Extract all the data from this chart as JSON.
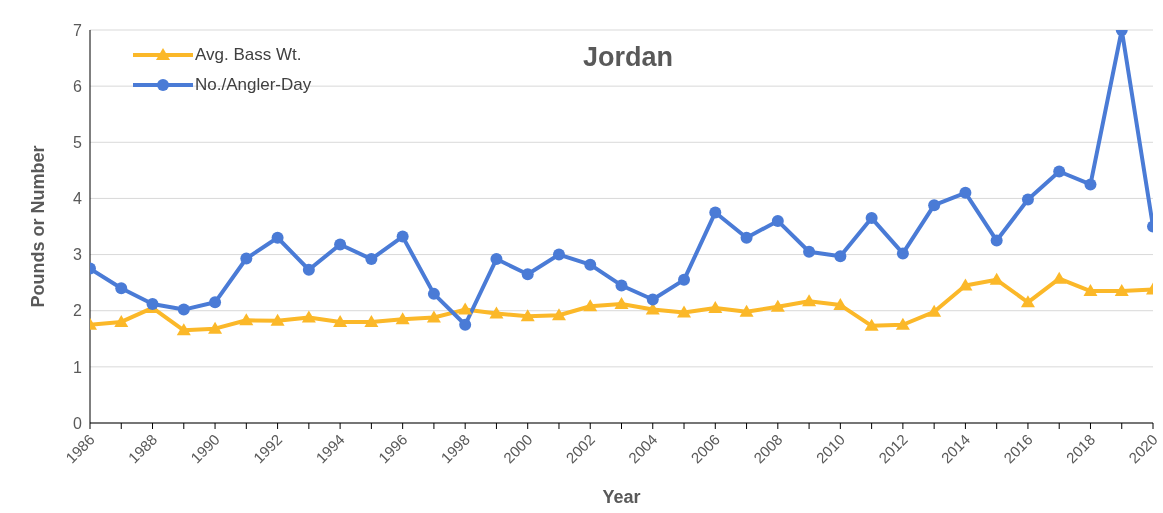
{
  "chart_data": {
    "type": "line",
    "title": "Jordan",
    "xlabel": "Year",
    "ylabel": "Pounds or Number",
    "categories": [
      "1986",
      null,
      "1988",
      null,
      "1990",
      null,
      "1992",
      null,
      "1994",
      null,
      "1996",
      null,
      "1998",
      null,
      "2000",
      null,
      "2002",
      null,
      "2004",
      null,
      "2006",
      null,
      "2008",
      null,
      "2010",
      null,
      "2012",
      null,
      "2014",
      null,
      "2016",
      null,
      "2018",
      null,
      "2020"
    ],
    "series": [
      {
        "name": "Avg. Bass Wt.",
        "color": "#fbb829",
        "marker": "triangle",
        "values": [
          1.75,
          1.8,
          2.05,
          1.65,
          1.68,
          1.83,
          1.82,
          1.88,
          1.8,
          1.8,
          1.85,
          1.88,
          2.02,
          1.95,
          1.9,
          1.92,
          2.08,
          2.12,
          2.02,
          1.97,
          2.05,
          1.98,
          2.07,
          2.17,
          2.1,
          1.73,
          1.75,
          1.98,
          2.45,
          2.55,
          2.15,
          2.57,
          2.35,
          2.35,
          2.38
        ]
      },
      {
        "name": "No./Angler-Day",
        "color": "#4a7bd6",
        "marker": "circle",
        "values": [
          2.75,
          2.4,
          2.12,
          2.02,
          2.15,
          2.93,
          3.3,
          2.73,
          3.18,
          2.92,
          3.32,
          2.3,
          1.75,
          2.92,
          2.65,
          3.0,
          2.82,
          2.45,
          2.2,
          2.55,
          3.75,
          3.3,
          3.6,
          3.05,
          2.97,
          3.65,
          3.02,
          3.88,
          4.1,
          3.25,
          3.98,
          4.48,
          4.25,
          7.0,
          3.5
        ]
      }
    ],
    "ylim": [
      0,
      7
    ],
    "yticks": [
      0,
      1,
      2,
      3,
      4,
      5,
      6,
      7
    ],
    "grid": "y",
    "legend": "top left",
    "line_style": "solid"
  }
}
